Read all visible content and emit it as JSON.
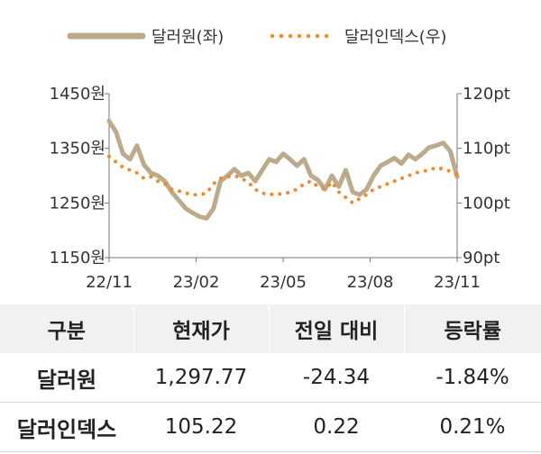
{
  "chart_data": {
    "type": "line",
    "legend": "top",
    "x_ticks": [
      "22/11",
      "23/02",
      "23/05",
      "23/08",
      "23/11"
    ],
    "y_left": {
      "ticks": [
        "1450원",
        "1350원",
        "1250원",
        "1150원"
      ],
      "range": [
        1150,
        1450
      ]
    },
    "y_right": {
      "ticks": [
        "120pt",
        "110pt",
        "100pt",
        "90pt"
      ],
      "range": [
        90,
        120
      ]
    },
    "series": [
      {
        "name": "달러원(좌)",
        "axis": "left",
        "style": "solid",
        "color": "#BCAA8A",
        "x": [
          "22/11",
          "22/11",
          "22/11",
          "22/11",
          "22/11",
          "22/12",
          "22/12",
          "22/12",
          "22/12",
          "23/01",
          "23/01",
          "23/01",
          "23/01",
          "23/02",
          "23/02",
          "23/02",
          "23/02",
          "23/03",
          "23/03",
          "23/03",
          "23/03",
          "23/04",
          "23/04",
          "23/04",
          "23/04",
          "23/05",
          "23/05",
          "23/05",
          "23/05",
          "23/06",
          "23/06",
          "23/06",
          "23/06",
          "23/07",
          "23/07",
          "23/07",
          "23/07",
          "23/08",
          "23/08",
          "23/08",
          "23/08",
          "23/09",
          "23/09",
          "23/09",
          "23/09",
          "23/10",
          "23/10",
          "23/10",
          "23/10",
          "23/11",
          "23/11"
        ],
        "values": [
          1400,
          1380,
          1340,
          1330,
          1355,
          1320,
          1305,
          1300,
          1290,
          1270,
          1255,
          1240,
          1232,
          1225,
          1222,
          1240,
          1290,
          1300,
          1312,
          1300,
          1305,
          1290,
          1310,
          1330,
          1325,
          1340,
          1330,
          1318,
          1330,
          1300,
          1292,
          1275,
          1300,
          1280,
          1310,
          1270,
          1265,
          1275,
          1300,
          1318,
          1325,
          1332,
          1322,
          1338,
          1330,
          1340,
          1352,
          1355,
          1360,
          1345,
          1298
        ]
      },
      {
        "name": "달러인덱스(우)",
        "axis": "right",
        "style": "dotted",
        "color": "#F08A2C",
        "x": [
          "22/11",
          "22/11",
          "22/11",
          "22/11",
          "22/11",
          "22/12",
          "22/12",
          "22/12",
          "22/12",
          "23/01",
          "23/01",
          "23/01",
          "23/01",
          "23/02",
          "23/02",
          "23/02",
          "23/02",
          "23/03",
          "23/03",
          "23/03",
          "23/03",
          "23/04",
          "23/04",
          "23/04",
          "23/04",
          "23/05",
          "23/05",
          "23/05",
          "23/05",
          "23/06",
          "23/06",
          "23/06",
          "23/06",
          "23/07",
          "23/07",
          "23/07",
          "23/07",
          "23/08",
          "23/08",
          "23/08",
          "23/08",
          "23/09",
          "23/09",
          "23/09",
          "23/09",
          "23/10",
          "23/10",
          "23/10",
          "23/10",
          "23/11",
          "23/11"
        ],
        "values": [
          108.5,
          107.5,
          106.5,
          106.0,
          105.5,
          104.5,
          104.8,
          104.0,
          103.5,
          102.5,
          102.2,
          101.8,
          101.5,
          101.5,
          101.8,
          103.5,
          104.5,
          104.8,
          105.0,
          104.5,
          103.8,
          102.5,
          101.8,
          101.5,
          101.7,
          101.6,
          102.0,
          102.5,
          103.5,
          104.0,
          103.0,
          102.5,
          103.8,
          102.0,
          101.0,
          100.0,
          100.8,
          101.5,
          102.5,
          103.0,
          103.5,
          104.0,
          104.5,
          105.0,
          105.5,
          105.8,
          106.0,
          106.5,
          106.2,
          105.8,
          105.2
        ]
      }
    ]
  },
  "table": {
    "headers": [
      "구분",
      "현재가",
      "전일 대비",
      "등락률"
    ],
    "rows": [
      [
        "달러원",
        "1,297.77",
        "-24.34",
        "-1.84%"
      ],
      [
        "달러인덱스",
        "105.22",
        "0.22",
        "0.21%"
      ]
    ]
  }
}
